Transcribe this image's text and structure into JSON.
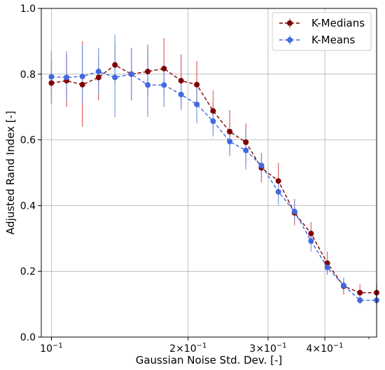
{
  "chart_data": {
    "type": "line",
    "xscale": "log",
    "title": "",
    "xlabel": "Gaussian Noise Std. Dev. [-]",
    "ylabel": "Adjusted Rand Index [-]",
    "xlim": [
      0.095,
      0.52
    ],
    "ylim": [
      0.0,
      1.0
    ],
    "grid": true,
    "legend_position": "top-right",
    "x": [
      0.1,
      0.108,
      0.117,
      0.127,
      0.138,
      0.15,
      0.163,
      0.177,
      0.193,
      0.209,
      0.227,
      0.247,
      0.268,
      0.29,
      0.316,
      0.343,
      0.373,
      0.405,
      0.44,
      0.478,
      0.52
    ],
    "xticks": [
      {
        "value": 0.1,
        "base": "10",
        "exp": "−1",
        "coef": ""
      },
      {
        "value": 0.2,
        "base": "10",
        "exp": "−1",
        "coef": "2×"
      },
      {
        "value": 0.3,
        "base": "10",
        "exp": "−1",
        "coef": "3×"
      },
      {
        "value": 0.4,
        "base": "10",
        "exp": "−1",
        "coef": "4×"
      }
    ],
    "yticks": [
      "0.0",
      "0.2",
      "0.4",
      "0.6",
      "0.8",
      "1.0"
    ],
    "series": [
      {
        "name": "K-Medians",
        "color": "#800000",
        "values": [
          0.773,
          0.78,
          0.768,
          0.79,
          0.828,
          0.8,
          0.808,
          0.817,
          0.78,
          0.768,
          0.688,
          0.625,
          0.593,
          0.515,
          0.475,
          0.378,
          0.315,
          0.225,
          0.155,
          0.135,
          0.135
        ],
        "err_low": [
          0.71,
          0.7,
          0.64,
          0.72,
          0.77,
          0.72,
          0.73,
          0.73,
          0.7,
          0.7,
          0.63,
          0.56,
          0.53,
          0.47,
          0.43,
          0.34,
          0.28,
          0.19,
          0.13,
          0.11,
          0.11
        ],
        "err_high": [
          0.84,
          0.86,
          0.9,
          0.86,
          0.89,
          0.88,
          0.89,
          0.91,
          0.86,
          0.84,
          0.75,
          0.69,
          0.65,
          0.56,
          0.53,
          0.42,
          0.35,
          0.26,
          0.18,
          0.16,
          0.16
        ]
      },
      {
        "name": "K-Means",
        "color": "#4169e1",
        "values": [
          0.792,
          0.79,
          0.793,
          0.808,
          0.79,
          0.8,
          0.767,
          0.767,
          0.738,
          0.708,
          0.657,
          0.595,
          0.568,
          0.522,
          0.442,
          0.382,
          0.292,
          0.212,
          0.157,
          0.112,
          0.112
        ],
        "err_low": [
          0.72,
          0.72,
          0.71,
          0.74,
          0.67,
          0.72,
          0.67,
          0.7,
          0.69,
          0.65,
          0.61,
          0.55,
          0.51,
          0.49,
          0.4,
          0.35,
          0.26,
          0.19,
          0.14,
          0.1,
          0.1
        ],
        "err_high": [
          0.87,
          0.87,
          0.89,
          0.88,
          0.92,
          0.88,
          0.87,
          0.83,
          0.78,
          0.76,
          0.7,
          0.64,
          0.63,
          0.56,
          0.48,
          0.42,
          0.33,
          0.23,
          0.18,
          0.13,
          0.13
        ]
      }
    ]
  }
}
